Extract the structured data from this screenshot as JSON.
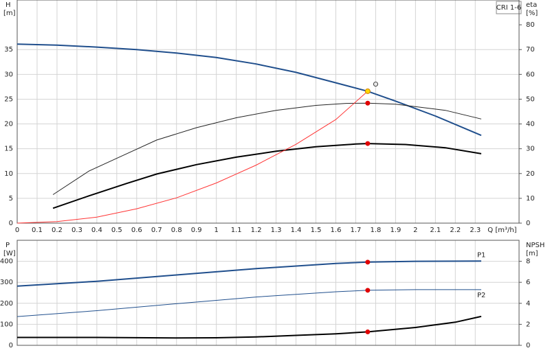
{
  "label": "CRI 1-6",
  "chart_data": [
    {
      "type": "line",
      "xlabel": "Q [m³/h]",
      "ylabel": "H",
      "yunit": "[m]",
      "y2label": "eta",
      "y2unit": "[%]",
      "xlim": [
        0,
        2.52
      ],
      "ylim": [
        0,
        45
      ],
      "y2lim": [
        0,
        90
      ],
      "xticks": [
        0,
        0.1,
        0.2,
        0.3,
        0.4,
        0.5,
        0.6,
        0.7,
        0.8,
        0.9,
        1.0,
        1.1,
        1.2,
        1.3,
        1.4,
        1.5,
        1.6,
        1.7,
        1.8,
        1.9,
        2.0,
        2.1,
        2.2,
        2.3
      ],
      "yticks": [
        0,
        5,
        10,
        15,
        20,
        25,
        30,
        35
      ],
      "y2ticks": [
        0,
        10,
        20,
        30,
        40,
        50,
        60,
        70,
        80
      ],
      "grid": true,
      "series": [
        {
          "color": "#1f4e8c",
          "width": 2,
          "axis": "y",
          "x": [
            0,
            0.2,
            0.4,
            0.6,
            0.8,
            1.0,
            1.2,
            1.4,
            1.6,
            1.76,
            1.9,
            2.1,
            2.33
          ],
          "values": [
            36.1,
            35.9,
            35.5,
            35.0,
            34.3,
            33.4,
            32.1,
            30.4,
            28.3,
            26.6,
            24.6,
            21.6,
            17.7
          ]
        },
        {
          "color": "#222222",
          "width": 1,
          "axis": "y2",
          "x": [
            0.18,
            0.36,
            0.55,
            0.7,
            0.9,
            1.1,
            1.3,
            1.5,
            1.65,
            1.76,
            1.9,
            2.15,
            2.33
          ],
          "values": [
            11.5,
            21,
            28,
            33.5,
            38.5,
            42.5,
            45.5,
            47.5,
            48.3,
            48.4,
            48,
            45.5,
            42
          ]
        },
        {
          "color": "#000000",
          "width": 2,
          "axis": "y2",
          "x": [
            0.18,
            0.36,
            0.55,
            0.7,
            0.9,
            1.1,
            1.3,
            1.5,
            1.7,
            1.76,
            1.95,
            2.15,
            2.33
          ],
          "values": [
            6,
            11,
            16,
            19.8,
            23.6,
            26.6,
            29,
            30.8,
            31.9,
            32.1,
            31.7,
            30.4,
            28
          ]
        },
        {
          "color": "#ff3333",
          "width": 1,
          "axis": "y",
          "x": [
            0,
            0.2,
            0.4,
            0.6,
            0.8,
            1.0,
            1.2,
            1.4,
            1.6,
            1.76
          ],
          "values": [
            0,
            0.3,
            1.2,
            2.9,
            5.1,
            8.1,
            11.7,
            15.9,
            20.9,
            26.6
          ]
        },
        {
          "style": "dots",
          "color": "#e00000",
          "axis": "y2",
          "x": [
            1.76,
            1.76
          ],
          "values": [
            48.4,
            32.1
          ]
        },
        {
          "style": "dots",
          "color": "#ffd700",
          "axis": "y",
          "x": [
            1.76
          ],
          "values": [
            26.6
          ]
        }
      ],
      "annotations": [
        {
          "text": "O",
          "x": 1.8,
          "y": 28,
          "color": "#ff3333"
        }
      ]
    },
    {
      "type": "line",
      "ylabel": "P",
      "yunit": "[W]",
      "y2label": "NPSH",
      "y2unit": "[m]",
      "xlim": [
        0,
        2.52
      ],
      "ylim": [
        0,
        500
      ],
      "y2lim": [
        0,
        10
      ],
      "yticks": [
        0,
        100,
        200,
        300,
        400
      ],
      "y2ticks": [
        0,
        2,
        4,
        6,
        8
      ],
      "grid": true,
      "series": [
        {
          "name": "P1",
          "color": "#1f4e8c",
          "width": 2,
          "axis": "y",
          "x": [
            0,
            0.4,
            0.8,
            1.2,
            1.6,
            1.76,
            2.0,
            2.33
          ],
          "values": [
            282,
            305,
            335,
            365,
            390,
            396,
            400,
            401
          ]
        },
        {
          "name": "P2",
          "color": "#1f4e8c",
          "width": 1,
          "axis": "y",
          "x": [
            0,
            0.4,
            0.8,
            1.2,
            1.6,
            1.76,
            2.0,
            2.33
          ],
          "values": [
            137,
            165,
            198,
            230,
            255,
            262,
            265,
            265
          ]
        },
        {
          "color": "#000000",
          "width": 2,
          "axis": "y2",
          "x": [
            0,
            0.4,
            0.8,
            1.0,
            1.2,
            1.4,
            1.6,
            1.76,
            2.0,
            2.2,
            2.33
          ],
          "values": [
            0.75,
            0.75,
            0.7,
            0.72,
            0.8,
            0.95,
            1.1,
            1.28,
            1.7,
            2.2,
            2.75
          ]
        },
        {
          "style": "dots",
          "color": "#e00000",
          "axis": "y",
          "x": [
            1.76,
            1.76
          ],
          "values": [
            396,
            262
          ]
        },
        {
          "style": "dots",
          "color": "#e00000",
          "axis": "y2",
          "x": [
            1.76
          ],
          "values": [
            1.28
          ]
        }
      ]
    }
  ]
}
